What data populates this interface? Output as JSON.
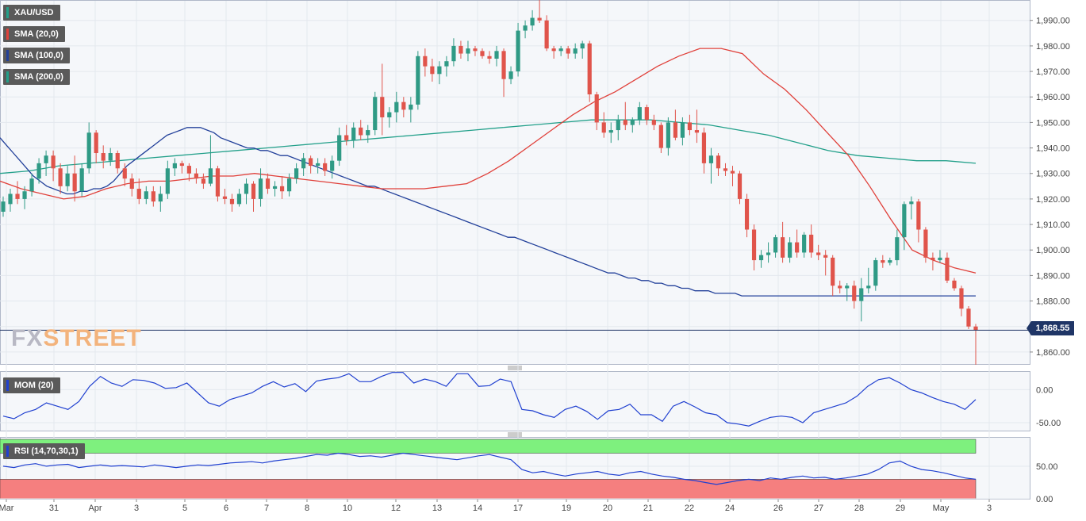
{
  "symbol": "XAU/USD",
  "indicators": {
    "sma20": "SMA (20,0)",
    "sma100": "SMA (100,0)",
    "sma200": "SMA (200,0)",
    "mom": "MOM (20)",
    "rsi": "RSI (14,70,30,1)"
  },
  "brand": {
    "fx": "FX",
    "street": "STREET"
  },
  "current_price": "1,868.55",
  "colors": {
    "up": "#2f9a85",
    "down": "#e0544b",
    "sma20": "#e0403a",
    "sma100": "#22409a",
    "sma200": "#22a08a",
    "mom": "#2040d0",
    "rsi": "#2040d0",
    "overbought_zone": "#7ef07e",
    "oversold_zone": "#f57f7f",
    "price_line": "#1f3566"
  },
  "chart_data": [
    {
      "type": "candlestick",
      "title": "XAU/USD",
      "ylim": [
        1855,
        1998
      ],
      "y_ticks": [
        "1,860.00",
        "1,870.00",
        "1,880.00",
        "1,890.00",
        "1,900.00",
        "1,910.00",
        "1,920.00",
        "1,930.00",
        "1,940.00",
        "1,950.00",
        "1,960.00",
        "1,970.00",
        "1,980.00",
        "1,990.00"
      ],
      "x_ticks": [
        "Mar",
        "31",
        "Apr",
        "3",
        "5",
        "6",
        "7",
        "8",
        "10",
        "12",
        "13",
        "14",
        "17",
        "19",
        "20",
        "21",
        "22",
        "24",
        "26",
        "27",
        "28",
        "29",
        "May",
        "3"
      ],
      "grid": true,
      "last_price": 1868.55,
      "ohlc": [
        [
          1915,
          1921,
          1913,
          1919
        ],
        [
          1918,
          1924,
          1915,
          1922
        ],
        [
          1922,
          1927,
          1918,
          1920
        ],
        [
          1920,
          1925,
          1916,
          1923
        ],
        [
          1923,
          1930,
          1921,
          1928
        ],
        [
          1928,
          1936,
          1926,
          1934
        ],
        [
          1934,
          1939,
          1929,
          1937
        ],
        [
          1937,
          1939,
          1927,
          1932
        ],
        [
          1932,
          1934,
          1922,
          1925
        ],
        [
          1925,
          1933,
          1923,
          1930
        ],
        [
          1930,
          1937,
          1919,
          1923
        ],
        [
          1923,
          1934,
          1921,
          1932
        ],
        [
          1932,
          1950,
          1930,
          1946
        ],
        [
          1946,
          1947,
          1934,
          1938
        ],
        [
          1938,
          1941,
          1932,
          1935
        ],
        [
          1935,
          1940,
          1933,
          1938
        ],
        [
          1938,
          1939,
          1930,
          1932
        ],
        [
          1932,
          1934,
          1925,
          1928
        ],
        [
          1928,
          1930,
          1921,
          1924
        ],
        [
          1924,
          1928,
          1918,
          1920
        ],
        [
          1920,
          1925,
          1918,
          1923
        ],
        [
          1923,
          1925,
          1917,
          1919
        ],
        [
          1919,
          1925,
          1915,
          1922
        ],
        [
          1922,
          1935,
          1920,
          1932
        ],
        [
          1932,
          1936,
          1929,
          1934
        ],
        [
          1934,
          1935,
          1930,
          1933
        ],
        [
          1933,
          1934,
          1927,
          1930
        ],
        [
          1930,
          1932,
          1926,
          1928
        ],
        [
          1928,
          1930,
          1924,
          1926
        ],
        [
          1926,
          1945,
          1925,
          1932
        ],
        [
          1932,
          1933,
          1919,
          1921
        ],
        [
          1921,
          1924,
          1918,
          1920
        ],
        [
          1920,
          1922,
          1915,
          1918
        ],
        [
          1918,
          1924,
          1917,
          1922
        ],
        [
          1922,
          1928,
          1918,
          1926
        ],
        [
          1926,
          1927,
          1915,
          1920
        ],
        [
          1920,
          1932,
          1917,
          1928
        ],
        [
          1928,
          1930,
          1922,
          1924
        ],
        [
          1924,
          1927,
          1921,
          1925
        ],
        [
          1925,
          1929,
          1920,
          1923
        ],
        [
          1923,
          1930,
          1921,
          1928
        ],
        [
          1928,
          1934,
          1926,
          1932
        ],
        [
          1932,
          1938,
          1929,
          1936
        ],
        [
          1936,
          1937,
          1930,
          1933
        ],
        [
          1933,
          1936,
          1930,
          1934
        ],
        [
          1934,
          1936,
          1929,
          1931
        ],
        [
          1931,
          1937,
          1928,
          1935
        ],
        [
          1935,
          1948,
          1933,
          1945
        ],
        [
          1945,
          1949,
          1941,
          1943
        ],
        [
          1943,
          1950,
          1940,
          1948
        ],
        [
          1948,
          1951,
          1943,
          1945
        ],
        [
          1945,
          1949,
          1942,
          1947
        ],
        [
          1947,
          1962,
          1945,
          1960
        ],
        [
          1960,
          1973,
          1945,
          1952
        ],
        [
          1952,
          1956,
          1948,
          1954
        ],
        [
          1954,
          1962,
          1950,
          1958
        ],
        [
          1958,
          1960,
          1952,
          1955
        ],
        [
          1955,
          1960,
          1950,
          1957
        ],
        [
          1957,
          1978,
          1955,
          1976
        ],
        [
          1976,
          1979,
          1968,
          1972
        ],
        [
          1972,
          1975,
          1966,
          1969
        ],
        [
          1969,
          1974,
          1965,
          1972
        ],
        [
          1972,
          1976,
          1968,
          1974
        ],
        [
          1974,
          1983,
          1972,
          1980
        ],
        [
          1980,
          1982,
          1975,
          1977
        ],
        [
          1977,
          1982,
          1974,
          1979
        ],
        [
          1979,
          1980,
          1976,
          1978
        ],
        [
          1978,
          1979,
          1975,
          1976
        ],
        [
          1976,
          1978,
          1973,
          1975
        ],
        [
          1975,
          1980,
          1972,
          1978
        ],
        [
          1978,
          1979,
          1960,
          1967
        ],
        [
          1967,
          1972,
          1965,
          1970
        ],
        [
          1970,
          1989,
          1968,
          1986
        ],
        [
          1986,
          1990,
          1983,
          1988
        ],
        [
          1988,
          1994,
          1986,
          1991
        ],
        [
          1991,
          1998,
          1989,
          1990
        ],
        [
          1990,
          1992,
          1978,
          1979
        ],
        [
          1979,
          1980,
          1975,
          1978
        ],
        [
          1978,
          1980,
          1976,
          1979
        ],
        [
          1979,
          1980,
          1975,
          1977
        ],
        [
          1977,
          1981,
          1975,
          1979
        ],
        [
          1979,
          1982,
          1975,
          1981
        ],
        [
          1981,
          1982,
          1958,
          1961
        ],
        [
          1961,
          1962,
          1947,
          1950
        ],
        [
          1950,
          1954,
          1944,
          1946
        ],
        [
          1946,
          1950,
          1942,
          1947
        ],
        [
          1947,
          1953,
          1943,
          1951
        ],
        [
          1951,
          1958,
          1947,
          1949
        ],
        [
          1949,
          1952,
          1946,
          1951
        ],
        [
          1951,
          1958,
          1949,
          1956
        ],
        [
          1956,
          1957,
          1949,
          1951
        ],
        [
          1951,
          1953,
          1947,
          1949
        ],
        [
          1949,
          1950,
          1938,
          1940
        ],
        [
          1940,
          1952,
          1937,
          1950
        ],
        [
          1950,
          1955,
          1943,
          1944
        ],
        [
          1944,
          1952,
          1941,
          1950
        ],
        [
          1950,
          1953,
          1945,
          1947
        ],
        [
          1947,
          1955,
          1942,
          1946
        ],
        [
          1946,
          1948,
          1930,
          1934
        ],
        [
          1934,
          1940,
          1926,
          1937
        ],
        [
          1937,
          1938,
          1929,
          1932
        ],
        [
          1932,
          1934,
          1929,
          1931
        ],
        [
          1931,
          1933,
          1925,
          1930
        ],
        [
          1930,
          1931,
          1918,
          1920
        ],
        [
          1920,
          1922,
          1905,
          1908
        ],
        [
          1908,
          1910,
          1892,
          1896
        ],
        [
          1896,
          1900,
          1893,
          1898
        ],
        [
          1898,
          1903,
          1895,
          1899
        ],
        [
          1899,
          1906,
          1897,
          1905
        ],
        [
          1905,
          1911,
          1895,
          1897
        ],
        [
          1897,
          1905,
          1895,
          1903
        ],
        [
          1903,
          1908,
          1897,
          1899
        ],
        [
          1899,
          1907,
          1897,
          1906
        ],
        [
          1906,
          1910,
          1897,
          1899
        ],
        [
          1899,
          1902,
          1896,
          1898
        ],
        [
          1898,
          1900,
          1890,
          1897
        ],
        [
          1897,
          1898,
          1882,
          1886
        ],
        [
          1886,
          1888,
          1883,
          1885
        ],
        [
          1885,
          1887,
          1880,
          1886
        ],
        [
          1886,
          1888,
          1877,
          1880
        ],
        [
          1880,
          1889,
          1872,
          1885
        ],
        [
          1885,
          1893,
          1883,
          1886
        ],
        [
          1886,
          1897,
          1884,
          1896
        ],
        [
          1896,
          1898,
          1893,
          1895
        ],
        [
          1895,
          1897,
          1894,
          1896
        ],
        [
          1896,
          1908,
          1894,
          1905
        ],
        [
          1905,
          1919,
          1900,
          1918
        ],
        [
          1918,
          1921,
          1912,
          1919
        ],
        [
          1919,
          1920,
          1903,
          1908
        ],
        [
          1908,
          1909,
          1895,
          1897
        ],
        [
          1897,
          1899,
          1892,
          1896
        ],
        [
          1896,
          1900,
          1895,
          1897
        ],
        [
          1897,
          1899,
          1887,
          1888
        ],
        [
          1888,
          1889,
          1884,
          1885
        ],
        [
          1885,
          1886,
          1874,
          1877
        ],
        [
          1877,
          1878,
          1869,
          1870
        ],
        [
          1870,
          1871,
          1855,
          1868.55
        ]
      ],
      "sma20": [
        1927,
        1924,
        1922,
        1920,
        1921,
        1924,
        1926,
        1927,
        1927,
        1928,
        1929,
        1929,
        1930,
        1929,
        1928,
        1927,
        1926,
        1925,
        1924,
        1924,
        1924,
        1925,
        1926,
        1930,
        1935,
        1941,
        1947,
        1953,
        1958,
        1962,
        1967,
        1972,
        1976,
        1979,
        1979,
        1977,
        1969,
        1963,
        1955,
        1946,
        1937,
        1925,
        1912,
        1900,
        1896,
        1893,
        1891
      ],
      "sma100": [
        1944,
        1941,
        1938,
        1935,
        1932,
        1929,
        1927,
        1925,
        1924,
        1923,
        1922,
        1922,
        1923,
        1923,
        1924,
        1924,
        1925,
        1927,
        1930,
        1933,
        1935,
        1937,
        1939,
        1941,
        1943,
        1945,
        1946,
        1947,
        1948,
        1948,
        1948,
        1947,
        1946,
        1944,
        1943,
        1942,
        1941,
        1940,
        1940,
        1939,
        1939,
        1938,
        1937,
        1937,
        1936,
        1935,
        1934,
        1933,
        1932,
        1931,
        1930,
        1929,
        1928,
        1927,
        1926,
        1925,
        1925,
        1924,
        1923,
        1922,
        1921,
        1920,
        1919,
        1918,
        1917,
        1916,
        1915,
        1914,
        1913,
        1912,
        1911,
        1910,
        1909,
        1908,
        1907,
        1906,
        1905,
        1905,
        1904,
        1903,
        1902,
        1901,
        1900,
        1899,
        1898,
        1897,
        1896,
        1895,
        1894,
        1893,
        1892,
        1891,
        1891,
        1890,
        1889,
        1889,
        1888,
        1888,
        1887,
        1887,
        1886,
        1886,
        1885,
        1885,
        1884,
        1884,
        1884,
        1883,
        1883,
        1883,
        1883,
        1882,
        1882,
        1882,
        1882,
        1882,
        1882,
        1882,
        1882,
        1882,
        1882,
        1882,
        1882,
        1882,
        1882,
        1882,
        1882,
        1882,
        1882,
        1882,
        1882,
        1882,
        1882,
        1882,
        1882,
        1882,
        1882,
        1882,
        1882,
        1882,
        1882,
        1882,
        1882,
        1882,
        1882,
        1882,
        1882
      ],
      "sma200": [
        1930,
        1931,
        1933,
        1934,
        1935,
        1936,
        1937,
        1938,
        1939,
        1940,
        1941,
        1942,
        1943,
        1944,
        1945,
        1946,
        1947,
        1948,
        1949,
        1950,
        1951,
        1951,
        1951,
        1950,
        1949,
        1947,
        1945,
        1942,
        1939,
        1937,
        1936,
        1935,
        1935,
        1934
      ]
    },
    {
      "type": "line",
      "title": "MOM (20)",
      "ylim": [
        -62,
        28
      ],
      "y_ticks": [
        "0.00",
        "-50.00"
      ],
      "values": [
        -40,
        -44,
        -35,
        -30,
        -20,
        -25,
        -30,
        -18,
        5,
        20,
        10,
        5,
        15,
        14,
        10,
        2,
        3,
        10,
        -5,
        -20,
        -25,
        -15,
        -10,
        -5,
        5,
        12,
        4,
        9,
        -3,
        13,
        16,
        18,
        24,
        12,
        12,
        20,
        26,
        26,
        10,
        16,
        12,
        5,
        24,
        24,
        5,
        6,
        16,
        12,
        -30,
        -32,
        -38,
        -42,
        -30,
        -25,
        -33,
        -45,
        -32,
        -30,
        -22,
        -38,
        -38,
        -48,
        -25,
        -18,
        -26,
        -35,
        -38,
        -50,
        -52,
        -55,
        -48,
        -42,
        -40,
        -42,
        -50,
        -35,
        -30,
        -25,
        -20,
        -10,
        5,
        15,
        18,
        10,
        0,
        -5,
        -12,
        -18,
        -22,
        -30,
        -15
      ]
    },
    {
      "type": "line",
      "title": "RSI (14,70,30,1)",
      "ylim": [
        0,
        95
      ],
      "y_ticks": [
        "50.00",
        "0.00"
      ],
      "levels": [
        70,
        30
      ],
      "values": [
        50,
        48,
        52,
        54,
        50,
        52,
        53,
        48,
        50,
        52,
        50,
        51,
        50,
        49,
        52,
        50,
        48,
        50,
        52,
        51,
        53,
        55,
        56,
        57,
        55,
        58,
        60,
        62,
        65,
        68,
        67,
        70,
        68,
        65,
        66,
        64,
        67,
        70,
        68,
        66,
        64,
        62,
        60,
        63,
        66,
        68,
        64,
        60,
        45,
        40,
        42,
        38,
        35,
        38,
        40,
        42,
        38,
        36,
        40,
        42,
        38,
        35,
        33,
        30,
        28,
        25,
        22,
        25,
        28,
        30,
        28,
        32,
        30,
        33,
        35,
        32,
        33,
        30,
        32,
        35,
        38,
        45,
        55,
        58,
        50,
        45,
        43,
        40,
        36,
        32,
        30
      ]
    }
  ]
}
